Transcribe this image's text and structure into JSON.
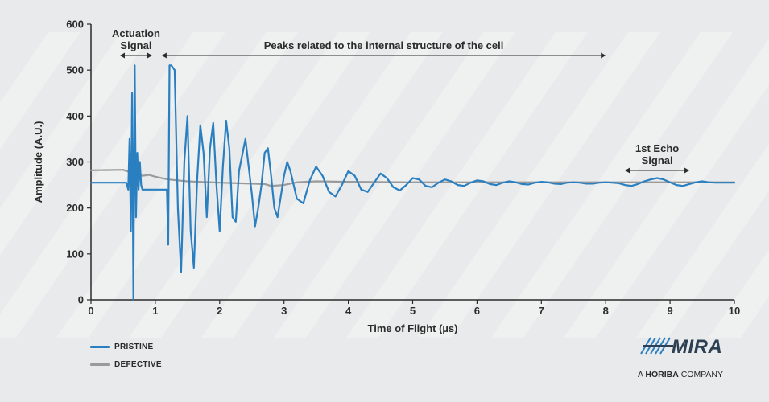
{
  "chart_data": {
    "type": "line",
    "xlabel": "Time of Flight (µs)",
    "ylabel": "Amplitude (A.U.)",
    "xlim": [
      0,
      10
    ],
    "ylim": [
      0,
      600
    ],
    "x_ticks": [
      "0",
      "1",
      "2",
      "3",
      "4",
      "5",
      "6",
      "7",
      "8",
      "9",
      "10"
    ],
    "y_ticks": [
      "0",
      "100",
      "200",
      "300",
      "400",
      "500",
      "600"
    ],
    "grid": false,
    "legend_position": "bottom-left",
    "series": [
      {
        "name": "PRISTINE",
        "color": "#2a7fc1",
        "x": [
          0,
          0.55,
          0.58,
          0.6,
          0.62,
          0.64,
          0.66,
          0.68,
          0.7,
          0.72,
          0.74,
          0.76,
          0.78,
          0.8,
          0.85,
          0.9,
          1.0,
          1.1,
          1.18,
          1.2,
          1.22,
          1.25,
          1.3,
          1.35,
          1.4,
          1.45,
          1.5,
          1.55,
          1.6,
          1.65,
          1.7,
          1.75,
          1.8,
          1.85,
          1.9,
          1.95,
          2.0,
          2.05,
          2.1,
          2.15,
          2.2,
          2.25,
          2.3,
          2.4,
          2.5,
          2.55,
          2.6,
          2.65,
          2.7,
          2.75,
          2.8,
          2.85,
          2.9,
          3.0,
          3.05,
          3.1,
          3.2,
          3.3,
          3.4,
          3.5,
          3.6,
          3.7,
          3.8,
          3.9,
          4.0,
          4.1,
          4.2,
          4.3,
          4.4,
          4.5,
          4.6,
          4.7,
          4.8,
          4.9,
          5.0,
          5.1,
          5.2,
          5.3,
          5.4,
          5.5,
          5.6,
          5.7,
          5.8,
          5.9,
          6.0,
          6.1,
          6.2,
          6.3,
          6.4,
          6.5,
          6.6,
          6.7,
          6.8,
          6.9,
          7.0,
          7.1,
          7.2,
          7.3,
          7.4,
          7.5,
          7.6,
          7.7,
          7.8,
          7.9,
          8.0,
          8.1,
          8.2,
          8.3,
          8.4,
          8.5,
          8.6,
          8.7,
          8.8,
          8.9,
          9.0,
          9.1,
          9.2,
          9.3,
          9.4,
          9.5,
          9.6,
          9.7,
          9.8,
          9.9,
          10
        ],
        "values": [
          255,
          255,
          240,
          350,
          150,
          450,
          0,
          510,
          180,
          320,
          240,
          300,
          250,
          240,
          240,
          240,
          240,
          240,
          240,
          120,
          510,
          510,
          500,
          200,
          60,
          300,
          400,
          150,
          70,
          260,
          380,
          320,
          180,
          330,
          385,
          250,
          150,
          290,
          390,
          330,
          180,
          170,
          280,
          350,
          230,
          160,
          200,
          250,
          320,
          330,
          270,
          200,
          180,
          270,
          300,
          280,
          220,
          210,
          260,
          290,
          270,
          235,
          225,
          250,
          280,
          270,
          240,
          235,
          255,
          275,
          265,
          245,
          238,
          250,
          265,
          262,
          248,
          245,
          255,
          262,
          258,
          250,
          248,
          255,
          260,
          258,
          252,
          250,
          255,
          258,
          256,
          252,
          251,
          255,
          257,
          256,
          253,
          252,
          255,
          256,
          255,
          253,
          253,
          255,
          256,
          255,
          254,
          250,
          248,
          252,
          258,
          262,
          265,
          262,
          256,
          250,
          248,
          252,
          256,
          258,
          256,
          255,
          255,
          255,
          255
        ]
      },
      {
        "name": "DEFECTIVE",
        "color": "#9a9a9a",
        "x": [
          0,
          0.5,
          0.6,
          0.7,
          0.8,
          0.9,
          1.0,
          1.2,
          1.5,
          2.0,
          2.5,
          2.7,
          2.8,
          3.0,
          3.2,
          3.5,
          4,
          5,
          6,
          7,
          8,
          9,
          10
        ],
        "values": [
          282,
          283,
          278,
          275,
          270,
          272,
          268,
          262,
          258,
          255,
          253,
          252,
          248,
          250,
          256,
          258,
          257,
          256,
          256,
          256,
          256,
          256,
          256
        ]
      }
    ],
    "annotations": [
      {
        "text_lines": [
          "Actuation",
          "Signal"
        ],
        "x_range": [
          0.45,
          0.95
        ]
      },
      {
        "text_lines": [
          "Peaks related to the internal structure of the cell"
        ],
        "x_range": [
          1.1,
          8.0
        ]
      },
      {
        "text_lines": [
          "1st Echo",
          "Signal"
        ],
        "x_range": [
          8.3,
          9.3
        ]
      }
    ]
  },
  "legend": {
    "items": [
      {
        "label": "PRISTINE",
        "color": "#2a7fc1"
      },
      {
        "label": "DEFECTIVE",
        "color": "#9a9a9a"
      }
    ]
  },
  "logo": {
    "name": "MIRA",
    "tagline_prefix": "A",
    "tagline_brand": "HORIBA",
    "tagline_suffix": "COMPANY",
    "color": "#2d3f52",
    "accent_color": "#2a7fc1"
  }
}
